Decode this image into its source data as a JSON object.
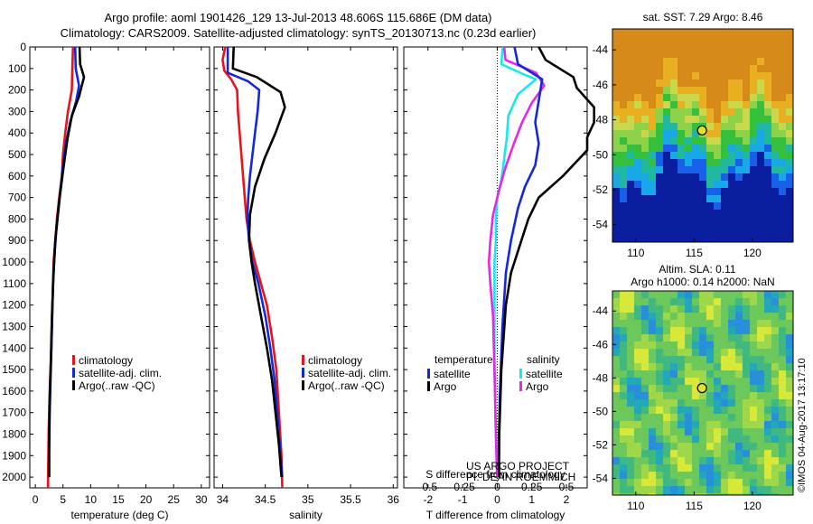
{
  "titles": {
    "line1": "Argo profile: aoml 1901426_129 13-Jul-2013 48.606S 115.686E (DM data)",
    "line2": "Climatology: CARS2009. Satellite-adjusted climatology: synTS_20130713.nc (0.23d earlier)"
  },
  "watermark": "©IMOS 04-Aug-2017 13:17:10",
  "credit": {
    "line1": "US ARGO PROJECT",
    "line2": "PI: DEAN ROEMMICH"
  },
  "colors": {
    "climatology": "#e8141c",
    "satellite_adj": "#1428d8",
    "argo": "#000000",
    "cyan": "#18e8e8",
    "magenta": "#e628e6"
  },
  "chart_data": [
    {
      "type": "line",
      "panel": "temperature",
      "xlabel": "temperature (deg C)",
      "ylabel": "",
      "xlim": [
        -1,
        31.5
      ],
      "ylim": [
        2050,
        0
      ],
      "xticks": [
        "0",
        "5",
        "10",
        "15",
        "20",
        "25",
        "30"
      ],
      "xtick_values": [
        0,
        5,
        10,
        15,
        20,
        25,
        30
      ],
      "yticks": [
        "0",
        "100",
        "200",
        "300",
        "400",
        "500",
        "600",
        "700",
        "800",
        "900",
        "1000",
        "1100",
        "1200",
        "1300",
        "1400",
        "1500",
        "1600",
        "1700",
        "1800",
        "1900",
        "2000"
      ],
      "legend": [
        "climatology",
        "satellite-adj. clim.",
        "Argo(..raw -QC)"
      ],
      "series": [
        {
          "name": "climatology",
          "color": "climatology",
          "points": [
            [
              6.8,
              0
            ],
            [
              6.7,
              100
            ],
            [
              6.6,
              200
            ],
            [
              5.9,
              300
            ],
            [
              5.4,
              400
            ],
            [
              5.0,
              500
            ],
            [
              4.8,
              600
            ],
            [
              4.3,
              700
            ],
            [
              3.9,
              800
            ],
            [
              3.6,
              900
            ],
            [
              3.3,
              1000
            ],
            [
              3.1,
              1200
            ],
            [
              2.9,
              1400
            ],
            [
              2.6,
              1600
            ],
            [
              2.4,
              1800
            ],
            [
              2.3,
              2000
            ],
            [
              2.3,
              2050
            ]
          ]
        },
        {
          "name": "satellite-adj. clim.",
          "color": "satellite_adj",
          "points": [
            [
              7.2,
              0
            ],
            [
              7.3,
              100
            ],
            [
              7.9,
              180
            ],
            [
              7.4,
              250
            ],
            [
              6.3,
              350
            ],
            [
              5.5,
              450
            ],
            [
              5.0,
              550
            ],
            [
              4.6,
              650
            ],
            [
              4.2,
              750
            ],
            [
              3.8,
              850
            ],
            [
              3.5,
              950
            ],
            [
              3.2,
              1100
            ],
            [
              3.0,
              1300
            ],
            [
              2.8,
              1500
            ],
            [
              2.6,
              1700
            ],
            [
              2.5,
              1900
            ],
            [
              2.5,
              2000
            ]
          ]
        },
        {
          "name": "Argo(..raw -QC)",
          "color": "argo",
          "points": [
            [
              8.0,
              0
            ],
            [
              8.1,
              80
            ],
            [
              8.8,
              140
            ],
            [
              7.9,
              230
            ],
            [
              6.6,
              320
            ],
            [
              5.8,
              430
            ],
            [
              5.3,
              520
            ],
            [
              4.9,
              600
            ],
            [
              4.4,
              700
            ],
            [
              4.0,
              800
            ],
            [
              3.6,
              900
            ],
            [
              3.3,
              1050
            ],
            [
              3.0,
              1250
            ],
            [
              2.8,
              1450
            ],
            [
              2.6,
              1650
            ],
            [
              2.5,
              1850
            ],
            [
              2.5,
              2000
            ]
          ]
        }
      ]
    },
    {
      "type": "line",
      "panel": "salinity",
      "xlabel": "salinity",
      "ylabel": "",
      "xlim": [
        33.9,
        36.05
      ],
      "ylim": [
        2050,
        0
      ],
      "xticks": [
        "34",
        "34.5",
        "35",
        "35.5",
        "36"
      ],
      "xtick_values": [
        34,
        34.5,
        35,
        35.5,
        36
      ],
      "legend": [
        "climatology",
        "satellite-adj. clim.",
        "Argo(..raw -QC)"
      ],
      "series": [
        {
          "name": "climatology",
          "color": "climatology",
          "points": [
            [
              34.03,
              0
            ],
            [
              34.0,
              60
            ],
            [
              34.02,
              110
            ],
            [
              34.1,
              150
            ],
            [
              34.17,
              200
            ],
            [
              34.18,
              300
            ],
            [
              34.2,
              400
            ],
            [
              34.22,
              500
            ],
            [
              34.25,
              650
            ],
            [
              34.28,
              800
            ],
            [
              34.32,
              900
            ],
            [
              34.38,
              1000
            ],
            [
              34.45,
              1100
            ],
            [
              34.52,
              1200
            ],
            [
              34.58,
              1350
            ],
            [
              34.63,
              1500
            ],
            [
              34.66,
              1700
            ],
            [
              34.69,
              1900
            ],
            [
              34.7,
              2050
            ]
          ]
        },
        {
          "name": "satellite-adj. clim.",
          "color": "satellite_adj",
          "points": [
            [
              34.06,
              0
            ],
            [
              34.06,
              120
            ],
            [
              34.3,
              160
            ],
            [
              34.43,
              200
            ],
            [
              34.41,
              300
            ],
            [
              34.38,
              400
            ],
            [
              34.35,
              500
            ],
            [
              34.32,
              600
            ],
            [
              34.3,
              700
            ],
            [
              34.29,
              800
            ],
            [
              34.31,
              900
            ],
            [
              34.35,
              1000
            ],
            [
              34.42,
              1100
            ],
            [
              34.5,
              1250
            ],
            [
              34.56,
              1400
            ],
            [
              34.61,
              1550
            ],
            [
              34.64,
              1700
            ],
            [
              34.67,
              1850
            ],
            [
              34.7,
              2000
            ]
          ]
        },
        {
          "name": "Argo(..raw -QC)",
          "color": "argo",
          "points": [
            [
              34.13,
              0
            ],
            [
              34.12,
              100
            ],
            [
              34.4,
              140
            ],
            [
              34.68,
              210
            ],
            [
              34.73,
              280
            ],
            [
              34.62,
              400
            ],
            [
              34.49,
              520
            ],
            [
              34.38,
              650
            ],
            [
              34.32,
              780
            ],
            [
              34.31,
              900
            ],
            [
              34.34,
              1000
            ],
            [
              34.38,
              1100
            ],
            [
              34.45,
              1250
            ],
            [
              34.52,
              1400
            ],
            [
              34.58,
              1550
            ],
            [
              34.62,
              1700
            ],
            [
              34.66,
              1850
            ],
            [
              34.69,
              2000
            ]
          ]
        }
      ]
    },
    {
      "type": "line",
      "panel": "difference",
      "xlabel": "T difference from climatology",
      "xlabel_top": "S difference from climatology",
      "ylabel": "",
      "xlim": [
        -2.7,
        2.6
      ],
      "ylim": [
        2050,
        0
      ],
      "xticks": [
        "-2",
        "-1",
        "0",
        "1",
        "2"
      ],
      "xtick_values": [
        -2,
        -1,
        0,
        1,
        2
      ],
      "s_xticks": [
        "-0.5",
        "-0.25",
        "0",
        "0.25",
        "0.5"
      ],
      "s_xtick_values": [
        -0.5,
        -0.25,
        0,
        0.25,
        0.5
      ],
      "s_scale": 4,
      "legend_headers": [
        "temperature",
        "salinity"
      ],
      "legend": [
        "satellite",
        "Argo",
        "satellite",
        "Argo"
      ],
      "series": [
        {
          "name": "satellite",
          "group": "temperature",
          "color": "satellite_adj",
          "points": [
            [
              0.5,
              0
            ],
            [
              0.6,
              80
            ],
            [
              1.3,
              150
            ],
            [
              1.2,
              250
            ],
            [
              1.1,
              350
            ],
            [
              1.2,
              450
            ],
            [
              1.1,
              550
            ],
            [
              0.8,
              650
            ],
            [
              0.6,
              750
            ],
            [
              0.4,
              900
            ],
            [
              0.25,
              1050
            ],
            [
              0.15,
              1300
            ],
            [
              0.08,
              1600
            ],
            [
              0.05,
              1800
            ],
            [
              0.05,
              2000
            ]
          ]
        },
        {
          "name": "Argo",
          "group": "temperature",
          "color": "argo",
          "points": [
            [
              1.2,
              0
            ],
            [
              1.4,
              60
            ],
            [
              2.2,
              140
            ],
            [
              2.3,
              190
            ],
            [
              2.8,
              280
            ],
            [
              2.8,
              350
            ],
            [
              2.6,
              420
            ],
            [
              2.6,
              480
            ],
            [
              1.9,
              600
            ],
            [
              1.2,
              700
            ],
            [
              0.9,
              800
            ],
            [
              0.7,
              900
            ],
            [
              0.4,
              1050
            ],
            [
              0.25,
              1200
            ],
            [
              0.12,
              1500
            ],
            [
              0.06,
              1800
            ],
            [
              0.05,
              2000
            ]
          ]
        },
        {
          "name": "satellite",
          "group": "salinity",
          "color": "cyan",
          "points": [
            [
              0.04,
              0
            ],
            [
              0.03,
              80
            ],
            [
              0.2,
              130
            ],
            [
              0.28,
              150
            ],
            [
              0.15,
              220
            ],
            [
              0.08,
              320
            ],
            [
              0.07,
              420
            ],
            [
              0.05,
              520
            ],
            [
              0.03,
              620
            ],
            [
              0.0,
              700
            ],
            [
              -0.01,
              800
            ],
            [
              -0.01,
              900
            ],
            [
              -0.02,
              1000
            ],
            [
              -0.02,
              1200
            ],
            [
              -0.02,
              1500
            ],
            [
              -0.01,
              1800
            ],
            [
              0.0,
              2000
            ]
          ]
        },
        {
          "name": "Argo",
          "group": "salinity",
          "color": "magenta",
          "points": [
            [
              0.05,
              0
            ],
            [
              0.06,
              60
            ],
            [
              0.28,
              120
            ],
            [
              0.34,
              180
            ],
            [
              0.25,
              260
            ],
            [
              0.18,
              350
            ],
            [
              0.12,
              450
            ],
            [
              0.06,
              560
            ],
            [
              0.02,
              650
            ],
            [
              -0.03,
              780
            ],
            [
              -0.05,
              900
            ],
            [
              -0.06,
              1000
            ],
            [
              -0.05,
              1100
            ],
            [
              -0.03,
              1250
            ],
            [
              -0.02,
              1500
            ],
            [
              -0.01,
              1800
            ],
            [
              0.0,
              2000
            ]
          ]
        }
      ]
    },
    {
      "type": "heatmap",
      "panel": "sst_map",
      "title": "sat. SST: 7.29 Argo: 8.46",
      "xticks": [
        "110",
        "115",
        "120"
      ],
      "xtick_values": [
        110,
        115,
        120
      ],
      "yticks": [
        "-44",
        "-46",
        "-48",
        "-50",
        "-52",
        "-54"
      ],
      "ytick_values": [
        -44,
        -46,
        -48,
        -50,
        -52,
        -54
      ],
      "xlim": [
        108,
        123.5
      ],
      "ylim": [
        -55,
        -42.8
      ],
      "marker": {
        "lon": 115.686,
        "lat": -48.606
      }
    },
    {
      "type": "heatmap",
      "panel": "sla_map",
      "title": "Altim. SLA: 0.11",
      "subtitle": "Argo h1000: 0.14 h2000: NaN",
      "xticks": [
        "110",
        "115",
        "120"
      ],
      "xtick_values": [
        110,
        115,
        120
      ],
      "yticks": [
        "-44",
        "-46",
        "-48",
        "-50",
        "-52",
        "-54"
      ],
      "ytick_values": [
        -44,
        -46,
        -48,
        -50,
        -52,
        -54
      ],
      "xlim": [
        108,
        123.5
      ],
      "ylim": [
        -55,
        -42.8
      ],
      "marker": {
        "lon": 115.686,
        "lat": -48.606
      }
    }
  ]
}
